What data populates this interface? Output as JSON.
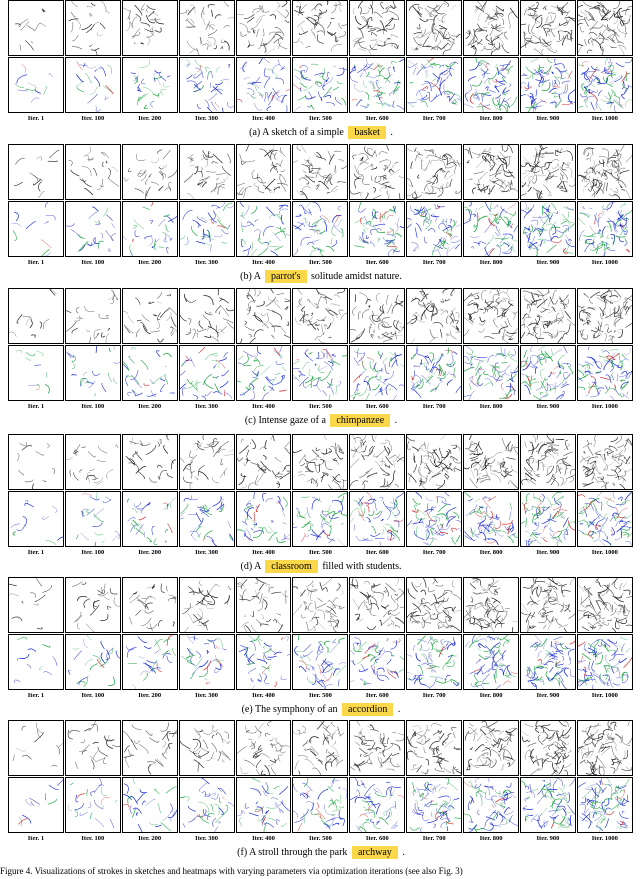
{
  "iteration_labels": [
    "Iter. 1",
    "Iter. 100",
    "Iter. 200",
    "Iter. 300",
    "Iter. 400",
    "Iter. 500",
    "Iter. 600",
    "Iter. 700",
    "Iter. 800",
    "Iter. 900",
    "Iter. 1000"
  ],
  "panels": [
    {
      "prefix": "(a) A sketch of a simple",
      "highlight": "basket",
      "suffix": "."
    },
    {
      "prefix": "(b) A",
      "highlight": "parrot's",
      "suffix": "solitude amidst nature."
    },
    {
      "prefix": "(c) Intense gaze of a",
      "highlight": "chimpanzee",
      "suffix": "."
    },
    {
      "prefix": "(d) A",
      "highlight": "classroom",
      "suffix": "filled with students."
    },
    {
      "prefix": "(e) The symphony of an",
      "highlight": "accordion",
      "suffix": "."
    },
    {
      "prefix": "(f) A stroll through the park",
      "highlight": "archway",
      "suffix": "."
    }
  ],
  "footer_text": "Figure 4. Visualizations of strokes in sketches and heatmaps with varying parameters via optimization iterations (see also Fig. 3)",
  "colors": {
    "highlight": "#fbd84a",
    "stroke_blue": "#1a2cd6",
    "stroke_green": "#1ba640",
    "stroke_red": "#d42a2a"
  }
}
